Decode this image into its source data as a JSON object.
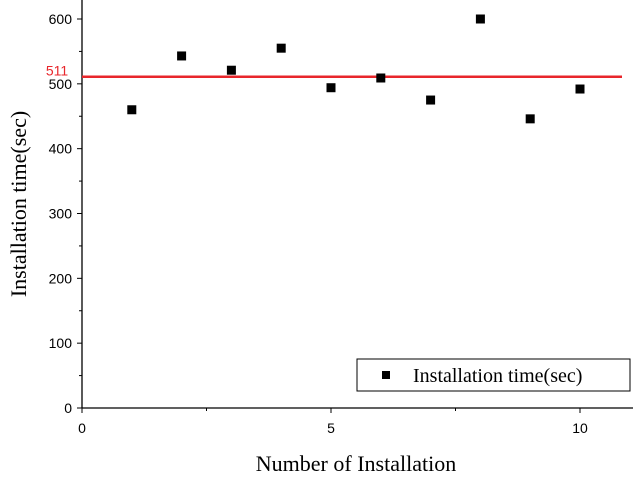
{
  "chart_data": {
    "type": "scatter",
    "title": "",
    "xlabel": "Number of Installation",
    "ylabel": "Installation time(sec)",
    "xlim": [
      0,
      11
    ],
    "ylim": [
      0,
      600
    ],
    "x_ticks": [
      0,
      5,
      10
    ],
    "y_ticks": [
      0,
      100,
      200,
      300,
      400,
      500,
      600
    ],
    "grid": false,
    "legend": {
      "placement": "bottom-right",
      "entries": [
        "Installation time(sec)"
      ]
    },
    "series": [
      {
        "name": "Installation time(sec)",
        "marker": "square",
        "color": "#000000",
        "x": [
          1,
          2,
          3,
          4,
          5,
          6,
          7,
          8,
          9,
          10
        ],
        "y": [
          460,
          543,
          521,
          555,
          494,
          509,
          475,
          600,
          446,
          492
        ]
      }
    ],
    "reference_line": {
      "y": 511,
      "label": "511",
      "color": "#e8262b"
    }
  }
}
